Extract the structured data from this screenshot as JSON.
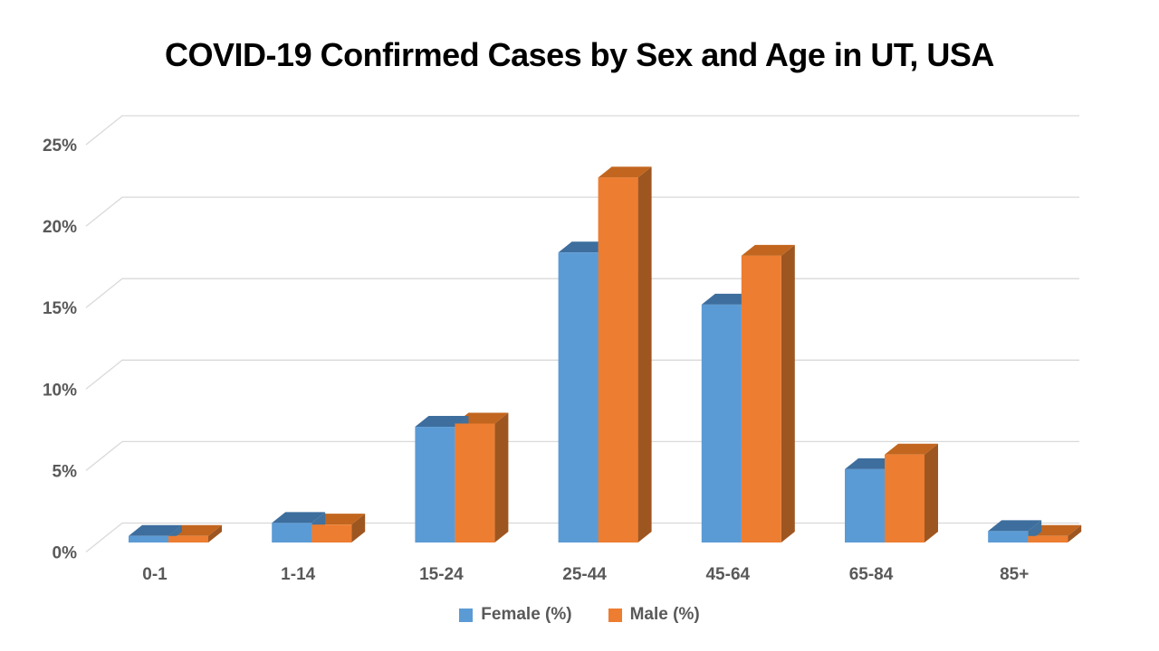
{
  "chart_data": {
    "type": "bar",
    "variant": "3d-clustered-column",
    "title": "COVID-19 Confirmed Cases by Sex and Age in UT, USA",
    "categories": [
      "0-1",
      "1-14",
      "15-24",
      "25-44",
      "45-64",
      "65-84",
      "85+"
    ],
    "series": [
      {
        "name": "Female (%)",
        "color": "#5B9BD5",
        "top_color": "#3D6E9E",
        "side_color": "#41719C",
        "values": [
          0.4,
          1.2,
          7.1,
          17.8,
          14.6,
          4.5,
          0.7
        ]
      },
      {
        "name": "Male (%)",
        "color": "#ED7D31",
        "top_color": "#C2661F",
        "side_color": "#9E5621",
        "values": [
          0.4,
          1.1,
          7.3,
          22.4,
          17.6,
          5.4,
          0.4
        ]
      }
    ],
    "xlabel": "",
    "ylabel": "",
    "ylim": [
      0,
      25
    ],
    "ytick_step": 5,
    "ytick_labels": [
      "0%",
      "5%",
      "10%",
      "15%",
      "20%",
      "25%"
    ],
    "grid": true,
    "legend_position": "bottom",
    "colors": {
      "gridline": "#D9D9D9",
      "axis_text": "#595959",
      "title": "#000000",
      "background": "#FFFFFF"
    }
  }
}
